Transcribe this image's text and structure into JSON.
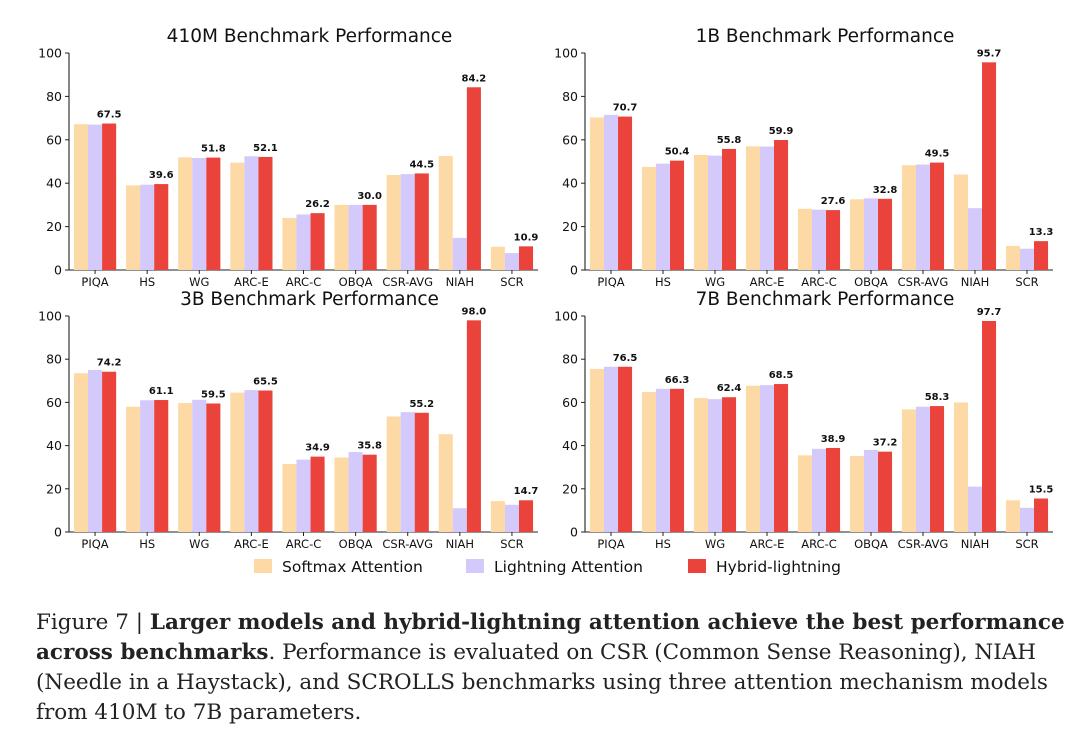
{
  "colors": {
    "softmax": "#fddaa5",
    "lightning": "#d3c9fb",
    "hybrid": "#ea433b"
  },
  "legend": [
    "Softmax Attention",
    "Lightning Attention",
    "Hybrid-lightning"
  ],
  "caption": {
    "prefix": "Figure 7 | ",
    "bold": "Larger models and hybrid-lightning attention achieve the best performance across benchmarks",
    "rest": ". Performance is evaluated on CSR (Common Sense Reasoning), NIAH (Needle in a Haystack), and SCROLLS benchmarks using three attention mechanism models from 410M to 7B parameters."
  },
  "chart_data": [
    {
      "type": "bar",
      "title": "410M Benchmark Performance",
      "categories": [
        "PIQA",
        "HS",
        "WG",
        "ARC-E",
        "ARC-C",
        "OBQA",
        "CSR-AVG",
        "NIAH",
        "SCR"
      ],
      "ylim": [
        0,
        100
      ],
      "yticks": [
        0,
        20,
        40,
        60,
        80,
        100
      ],
      "series": [
        {
          "name": "Softmax Attention",
          "values": [
            67.2,
            39.0,
            51.9,
            49.5,
            24.0,
            30.0,
            43.8,
            52.5,
            10.7
          ]
        },
        {
          "name": "Lightning Attention",
          "values": [
            67.0,
            39.3,
            51.6,
            52.4,
            25.6,
            30.0,
            44.2,
            14.8,
            7.8
          ]
        },
        {
          "name": "Hybrid-lightning",
          "values": [
            67.5,
            39.6,
            51.8,
            52.1,
            26.2,
            30.0,
            44.5,
            84.2,
            10.9
          ]
        }
      ],
      "labels": [
        "67.5",
        "39.6",
        "51.8",
        "52.1",
        "26.2",
        "30.0",
        "44.5",
        "84.2",
        "10.9"
      ]
    },
    {
      "type": "bar",
      "title": "1B Benchmark Performance",
      "categories": [
        "PIQA",
        "HS",
        "WG",
        "ARC-E",
        "ARC-C",
        "OBQA",
        "CSR-AVG",
        "NIAH",
        "SCR"
      ],
      "ylim": [
        0,
        100
      ],
      "yticks": [
        0,
        20,
        40,
        60,
        80,
        100
      ],
      "series": [
        {
          "name": "Softmax Attention",
          "values": [
            70.3,
            47.5,
            53.0,
            57.0,
            28.2,
            32.6,
            48.3,
            44.0,
            11.1
          ]
        },
        {
          "name": "Lightning Attention",
          "values": [
            71.5,
            49.0,
            52.7,
            56.9,
            27.8,
            33.0,
            48.6,
            28.5,
            9.8
          ]
        },
        {
          "name": "Hybrid-lightning",
          "values": [
            70.7,
            50.4,
            55.8,
            59.9,
            27.6,
            32.8,
            49.5,
            95.7,
            13.3
          ]
        }
      ],
      "labels": [
        "70.7",
        "50.4",
        "55.8",
        "59.9",
        "27.6",
        "32.8",
        "49.5",
        "95.7",
        "13.3"
      ]
    },
    {
      "type": "bar",
      "title": "3B Benchmark Performance",
      "categories": [
        "PIQA",
        "HS",
        "WG",
        "ARC-E",
        "ARC-C",
        "OBQA",
        "CSR-AVG",
        "NIAH",
        "SCR"
      ],
      "ylim": [
        0,
        100
      ],
      "yticks": [
        0,
        20,
        40,
        60,
        80,
        100
      ],
      "series": [
        {
          "name": "Softmax Attention",
          "values": [
            73.5,
            58.0,
            59.7,
            64.5,
            31.5,
            34.5,
            53.5,
            45.3,
            14.3
          ]
        },
        {
          "name": "Lightning Attention",
          "values": [
            75.0,
            61.0,
            61.2,
            65.7,
            33.5,
            37.0,
            55.5,
            11.0,
            12.6
          ]
        },
        {
          "name": "Hybrid-lightning",
          "values": [
            74.2,
            61.1,
            59.5,
            65.5,
            34.9,
            35.8,
            55.2,
            98.0,
            14.7
          ]
        }
      ],
      "labels": [
        "74.2",
        "61.1",
        "59.5",
        "65.5",
        "34.9",
        "35.8",
        "55.2",
        "98.0",
        "14.7"
      ]
    },
    {
      "type": "bar",
      "title": "7B Benchmark Performance",
      "categories": [
        "PIQA",
        "HS",
        "WG",
        "ARC-E",
        "ARC-C",
        "OBQA",
        "CSR-AVG",
        "NIAH",
        "SCR"
      ],
      "ylim": [
        0,
        100
      ],
      "yticks": [
        0,
        20,
        40,
        60,
        80,
        100
      ],
      "series": [
        {
          "name": "Softmax Attention",
          "values": [
            75.5,
            64.8,
            62.0,
            67.7,
            35.5,
            35.2,
            56.8,
            60.0,
            14.7
          ]
        },
        {
          "name": "Lightning Attention",
          "values": [
            76.5,
            66.3,
            61.5,
            68.0,
            38.5,
            38.0,
            58.0,
            21.0,
            11.2
          ]
        },
        {
          "name": "Hybrid-lightning",
          "values": [
            76.5,
            66.3,
            62.4,
            68.5,
            38.9,
            37.2,
            58.3,
            97.7,
            15.5
          ]
        }
      ],
      "labels": [
        "76.5",
        "66.3",
        "62.4",
        "68.5",
        "38.9",
        "37.2",
        "58.3",
        "97.7",
        "15.5"
      ]
    }
  ]
}
